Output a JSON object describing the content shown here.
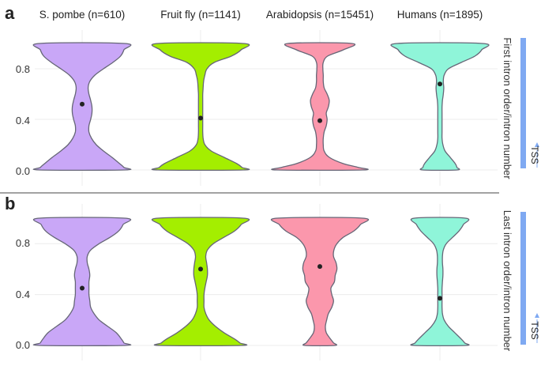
{
  "figure": {
    "columns": [
      "S. pombe (n=610)",
      "Fruit fly (n=1141)",
      "Arabidopsis (n=15451)",
      "Humans (n=1895)"
    ],
    "y_ticks": [
      "0.0",
      "0.4",
      "0.8"
    ]
  },
  "chart_data": [
    {
      "type": "violin",
      "panel": "a",
      "strip_label": "First intron order/intron number",
      "indicator_label": "TSS",
      "categories": [
        "S. pombe (n=610)",
        "Fruit fly (n=1141)",
        "Arabidopsis (n=15451)",
        "Humans (n=1895)"
      ],
      "ylim": [
        0,
        1
      ],
      "y_ticks": [
        0.0,
        0.4,
        0.8
      ],
      "grid": true,
      "colors": [
        "#c9a7f7",
        "#a4ee00",
        "#fb97ac",
        "#8ff5d9"
      ],
      "outline_color": "#666677",
      "series": [
        {
          "name": "S. pombe (n=610)",
          "median": 0.52,
          "density_y": [
            0,
            0.02,
            0.05,
            0.1,
            0.15,
            0.2,
            0.25,
            0.3,
            0.35,
            0.4,
            0.45,
            0.5,
            0.55,
            0.6,
            0.65,
            0.7,
            0.75,
            0.8,
            0.85,
            0.9,
            0.95,
            1.0
          ],
          "half_width": [
            1.0,
            0.98,
            0.88,
            0.7,
            0.5,
            0.33,
            0.22,
            0.16,
            0.16,
            0.2,
            0.23,
            0.23,
            0.2,
            0.16,
            0.14,
            0.18,
            0.3,
            0.5,
            0.72,
            0.9,
            0.98,
            1.0
          ]
        },
        {
          "name": "Fruit fly (n=1141)",
          "median": 0.41,
          "density_y": [
            0,
            0.02,
            0.05,
            0.1,
            0.15,
            0.2,
            0.25,
            0.3,
            0.35,
            0.4,
            0.45,
            0.5,
            0.55,
            0.6,
            0.65,
            0.7,
            0.75,
            0.8,
            0.85,
            0.9,
            0.95,
            1.0
          ],
          "half_width": [
            1.0,
            0.97,
            0.85,
            0.55,
            0.25,
            0.1,
            0.06,
            0.05,
            0.05,
            0.05,
            0.05,
            0.05,
            0.05,
            0.05,
            0.06,
            0.07,
            0.1,
            0.15,
            0.32,
            0.72,
            0.95,
            1.0
          ]
        },
        {
          "name": "Arabidopsis (n=15451)",
          "median": 0.39,
          "density_y": [
            0,
            0.02,
            0.05,
            0.1,
            0.15,
            0.2,
            0.25,
            0.3,
            0.35,
            0.4,
            0.45,
            0.5,
            0.55,
            0.6,
            0.65,
            0.7,
            0.75,
            0.8,
            0.85,
            0.9,
            0.95,
            1.0
          ],
          "half_width": [
            1.0,
            0.9,
            0.55,
            0.22,
            0.1,
            0.08,
            0.08,
            0.1,
            0.15,
            0.17,
            0.15,
            0.2,
            0.22,
            0.17,
            0.1,
            0.08,
            0.08,
            0.07,
            0.08,
            0.18,
            0.55,
            0.75
          ]
        },
        {
          "name": "Humans (n=1895)",
          "median": 0.68,
          "density_y": [
            0,
            0.02,
            0.05,
            0.1,
            0.15,
            0.2,
            0.25,
            0.3,
            0.35,
            0.4,
            0.45,
            0.5,
            0.55,
            0.6,
            0.65,
            0.7,
            0.75,
            0.8,
            0.85,
            0.9,
            0.95,
            1.0
          ],
          "half_width": [
            0.4,
            0.4,
            0.36,
            0.24,
            0.12,
            0.07,
            0.05,
            0.05,
            0.05,
            0.05,
            0.05,
            0.05,
            0.06,
            0.08,
            0.09,
            0.08,
            0.1,
            0.2,
            0.5,
            0.82,
            0.98,
            1.0
          ]
        }
      ]
    },
    {
      "type": "violin",
      "panel": "b",
      "strip_label": "Last intron order/intron number",
      "indicator_label": "TSS",
      "categories": [
        "S. pombe (n=610)",
        "Fruit fly (n=1141)",
        "Arabidopsis (n=15451)",
        "Humans (n=1895)"
      ],
      "ylim": [
        0,
        1
      ],
      "y_ticks": [
        0.0,
        0.4,
        0.8
      ],
      "grid": true,
      "colors": [
        "#c9a7f7",
        "#a4ee00",
        "#fb97ac",
        "#8ff5d9"
      ],
      "outline_color": "#666677",
      "series": [
        {
          "name": "S. pombe (n=610)",
          "median": 0.45,
          "density_y": [
            0,
            0.02,
            0.05,
            0.1,
            0.15,
            0.2,
            0.25,
            0.3,
            0.35,
            0.4,
            0.45,
            0.5,
            0.55,
            0.6,
            0.65,
            0.7,
            0.75,
            0.8,
            0.85,
            0.9,
            0.95,
            1.0
          ],
          "half_width": [
            1.0,
            0.98,
            0.92,
            0.8,
            0.6,
            0.4,
            0.28,
            0.2,
            0.18,
            0.16,
            0.16,
            0.16,
            0.18,
            0.16,
            0.12,
            0.12,
            0.2,
            0.4,
            0.66,
            0.86,
            0.96,
            1.0
          ]
        },
        {
          "name": "Fruit fly (n=1141)",
          "median": 0.6,
          "density_y": [
            0,
            0.02,
            0.05,
            0.1,
            0.15,
            0.2,
            0.25,
            0.3,
            0.35,
            0.4,
            0.45,
            0.5,
            0.55,
            0.6,
            0.65,
            0.7,
            0.75,
            0.8,
            0.85,
            0.9,
            0.95,
            1.0
          ],
          "half_width": [
            0.95,
            0.92,
            0.8,
            0.55,
            0.35,
            0.2,
            0.12,
            0.08,
            0.08,
            0.08,
            0.1,
            0.13,
            0.16,
            0.16,
            0.14,
            0.12,
            0.16,
            0.3,
            0.55,
            0.8,
            0.95,
            1.0
          ]
        },
        {
          "name": "Arabidopsis (n=15451)",
          "median": 0.62,
          "density_y": [
            0,
            0.02,
            0.05,
            0.1,
            0.15,
            0.2,
            0.25,
            0.3,
            0.35,
            0.4,
            0.45,
            0.5,
            0.55,
            0.6,
            0.65,
            0.7,
            0.75,
            0.8,
            0.85,
            0.9,
            0.95,
            1.0
          ],
          "half_width": [
            0.35,
            0.32,
            0.25,
            0.15,
            0.13,
            0.16,
            0.2,
            0.28,
            0.32,
            0.28,
            0.26,
            0.34,
            0.36,
            0.4,
            0.38,
            0.32,
            0.33,
            0.4,
            0.55,
            0.8,
            0.95,
            1.0
          ]
        },
        {
          "name": "Humans (n=1895)",
          "median": 0.37,
          "density_y": [
            0,
            0.02,
            0.05,
            0.1,
            0.15,
            0.2,
            0.25,
            0.3,
            0.35,
            0.4,
            0.45,
            0.5,
            0.55,
            0.6,
            0.65,
            0.7,
            0.75,
            0.8,
            0.85,
            0.9,
            0.95,
            1.0
          ],
          "half_width": [
            0.6,
            0.58,
            0.5,
            0.35,
            0.2,
            0.1,
            0.06,
            0.05,
            0.05,
            0.05,
            0.05,
            0.06,
            0.07,
            0.07,
            0.06,
            0.06,
            0.08,
            0.15,
            0.3,
            0.45,
            0.55,
            0.6
          ]
        }
      ]
    }
  ]
}
